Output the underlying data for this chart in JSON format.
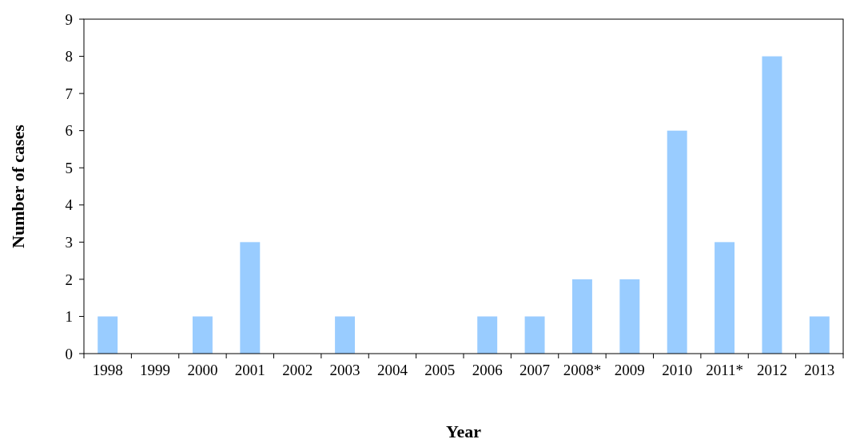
{
  "chart_data": {
    "type": "bar",
    "xlabel": "Year",
    "ylabel": "Number of cases",
    "categories": [
      "1998",
      "1999",
      "2000",
      "2001",
      "2002",
      "2003",
      "2004",
      "2005",
      "2006",
      "2007",
      "2008*",
      "2009",
      "2010",
      "2011*",
      "2012",
      "2013"
    ],
    "values": [
      1,
      0,
      1,
      3,
      0,
      1,
      0,
      0,
      1,
      1,
      2,
      2,
      6,
      3,
      8,
      1
    ],
    "color": "#99ccff",
    "ylim": [
      0,
      9
    ],
    "yticks": [
      0,
      1,
      2,
      3,
      4,
      5,
      6,
      7,
      8,
      9
    ],
    "grid": false
  }
}
